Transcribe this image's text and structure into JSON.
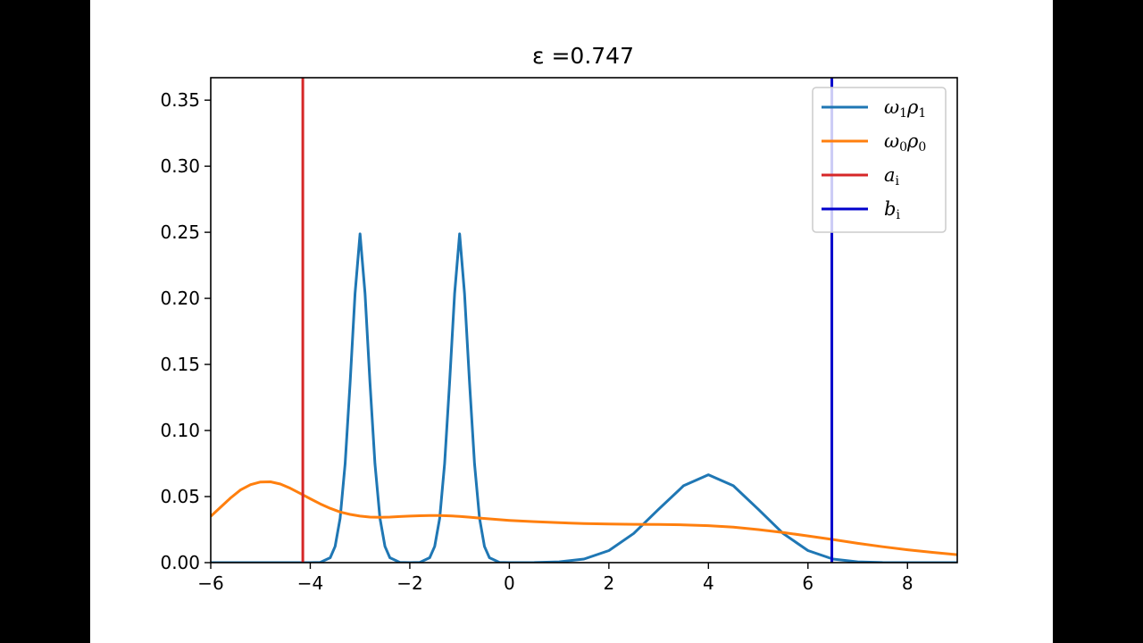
{
  "chart_data": {
    "type": "line",
    "title": "ε =0.747",
    "xlabel": "",
    "ylabel": "",
    "xlim": [
      -6,
      9
    ],
    "ylim": [
      0,
      0.367
    ],
    "xticks": [
      -6,
      -4,
      -2,
      0,
      2,
      4,
      6,
      8
    ],
    "xtick_labels": [
      "−6",
      "−4",
      "−2",
      "0",
      "2",
      "4",
      "6",
      "8"
    ],
    "yticks": [
      0.0,
      0.05,
      0.1,
      0.15,
      0.2,
      0.25,
      0.3,
      0.35
    ],
    "ytick_labels": [
      "0.00",
      "0.05",
      "0.10",
      "0.15",
      "0.20",
      "0.25",
      "0.30",
      "0.35"
    ],
    "grid": false,
    "legend_position": "top-right",
    "series": [
      {
        "name": "ω1ρ1",
        "legend_base": "ω",
        "legend_sub1": "1",
        "legend_mid": "ρ",
        "legend_sub2": "1",
        "color": "#1f77b4",
        "x": [
          -6.0,
          -4.0,
          -3.8,
          -3.6,
          -3.5,
          -3.4,
          -3.3,
          -3.2,
          -3.1,
          -3.0,
          -2.9,
          -2.8,
          -2.7,
          -2.6,
          -2.5,
          -2.4,
          -2.2,
          -2.0,
          -1.8,
          -1.6,
          -1.5,
          -1.4,
          -1.3,
          -1.2,
          -1.1,
          -1.0,
          -0.9,
          -0.8,
          -0.7,
          -0.6,
          -0.5,
          -0.4,
          -0.2,
          0.0,
          0.5,
          1.0,
          1.5,
          2.0,
          2.5,
          3.0,
          3.5,
          4.0,
          4.5,
          5.0,
          5.5,
          6.0,
          6.5,
          7.0,
          7.5,
          8.0,
          9.0
        ],
        "y": [
          0.0,
          0.0,
          0.0002,
          0.0037,
          0.0123,
          0.0336,
          0.0748,
          0.1364,
          0.2036,
          0.2488,
          0.2036,
          0.1364,
          0.0748,
          0.0336,
          0.0123,
          0.0037,
          0.0002,
          0.0,
          0.0002,
          0.0037,
          0.0123,
          0.0336,
          0.0748,
          0.1364,
          0.2036,
          0.2488,
          0.2036,
          0.1364,
          0.0748,
          0.0336,
          0.0123,
          0.0037,
          0.0002,
          0.0,
          0.0001,
          0.0006,
          0.0027,
          0.0091,
          0.0221,
          0.0404,
          0.0582,
          0.0665,
          0.0582,
          0.0404,
          0.0221,
          0.0091,
          0.0027,
          0.0006,
          0.0001,
          0.0,
          0.0
        ]
      },
      {
        "name": "ω0ρ0",
        "legend_base": "ω",
        "legend_sub1": "0",
        "legend_mid": "ρ",
        "legend_sub2": "0",
        "color": "#ff7f0e",
        "x": [
          -6.0,
          -5.8,
          -5.6,
          -5.4,
          -5.2,
          -5.0,
          -4.8,
          -4.6,
          -4.4,
          -4.2,
          -4.0,
          -3.8,
          -3.6,
          -3.4,
          -3.2,
          -3.0,
          -2.8,
          -2.6,
          -2.4,
          -2.2,
          -2.0,
          -1.8,
          -1.6,
          -1.4,
          -1.2,
          -1.0,
          -0.8,
          -0.6,
          -0.4,
          -0.2,
          0.0,
          0.5,
          1.0,
          1.5,
          2.0,
          2.5,
          3.0,
          3.5,
          4.0,
          4.5,
          5.0,
          5.5,
          6.0,
          6.5,
          7.0,
          7.5,
          8.0,
          8.5,
          9.0
        ],
        "y": [
          0.035,
          0.042,
          0.049,
          0.055,
          0.059,
          0.061,
          0.0612,
          0.0595,
          0.0562,
          0.0523,
          0.0483,
          0.0445,
          0.0411,
          0.0383,
          0.0365,
          0.0352,
          0.0345,
          0.0343,
          0.0345,
          0.0349,
          0.0352,
          0.0355,
          0.0356,
          0.0356,
          0.0354,
          0.035,
          0.0344,
          0.0337,
          0.0331,
          0.0325,
          0.032,
          0.031,
          0.0302,
          0.0296,
          0.0292,
          0.029,
          0.0289,
          0.0286,
          0.028,
          0.0268,
          0.025,
          0.0228,
          0.0202,
          0.0175,
          0.0146,
          0.012,
          0.0097,
          0.0078,
          0.006
        ]
      }
    ],
    "vlines": [
      {
        "name": "a_i",
        "legend_base": "a",
        "legend_sub": "i",
        "x": -4.15,
        "color": "#d62728"
      },
      {
        "name": "b_i",
        "legend_base": "b",
        "legend_sub": "i",
        "x": 6.48,
        "color": "#0000cc"
      }
    ]
  }
}
